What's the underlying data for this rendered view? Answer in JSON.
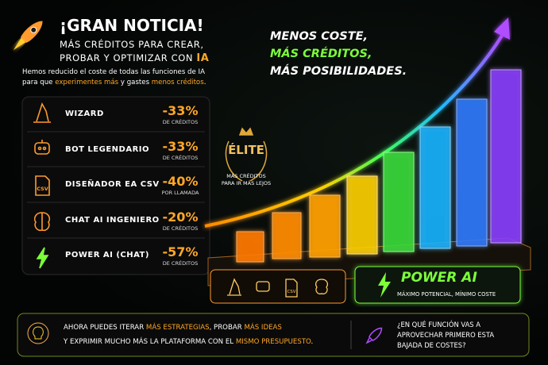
{
  "header": {
    "title": "¡GRAN NOTICIA!",
    "subtitle_line1": "MÁS CRÉDITOS PARA CREAR,",
    "subtitle_line2": "PROBAR Y OPTIMIZAR CON",
    "subtitle_highlight": "IA"
  },
  "intro": {
    "line1": "Hemos reducido el coste de todas las funciones de IA",
    "line2_start": "para que",
    "highlight1": "experimentes más",
    "middle": "y gastes",
    "highlight2": "menos créditos",
    "end": "."
  },
  "features": [
    {
      "name": "WIZARD",
      "discount": "-33%",
      "note": "DE CRÉDITOS"
    },
    {
      "name": "BOT LEGENDARIO",
      "discount": "-33%",
      "note": "DE CRÉDITOS"
    },
    {
      "name": "DISEÑADOR EA CSV",
      "discount": "-40%",
      "note": "POR LLAMADA",
      "icon_label": "CSV"
    },
    {
      "name": "CHAT AI INGENIERO",
      "discount": "-20%",
      "note": "DE CRÉDITOS"
    },
    {
      "name": "POWER AI (CHAT)",
      "discount": "-57%",
      "note": "DE CRÉDITOS"
    }
  ],
  "tagline": {
    "line1": "MENOS COSTE,",
    "line2": "MÁS CRÉDITOS,",
    "line3": "MÁS POSIBILIDADES."
  },
  "badge": {
    "title": "ÉLITE",
    "line1": "MÁS CRÉDITOS",
    "line2": "PARA IR MÁS LEJOS"
  },
  "power_ai": {
    "title": "POWER AI",
    "subtitle": "MÁXIMO POTENCIAL, MÍNIMO COSTE"
  },
  "footer": {
    "line1_start": "AHORA PUEDES ITERAR",
    "highlight1": "MÁS ESTRATEGIAS",
    "line1_mid": ", PROBAR",
    "highlight2": "MÁS IDEAS",
    "line2_start": "Y EXPRIMIR MUCHO MÁS LA PLATAFORMA CON EL",
    "highlight3": "MISMO PRESUPUESTO",
    "line2_end": ".",
    "question_line1": "¿EN QUÉ FUNCIÓN VAS A",
    "question_line2": "APROVECHAR PRIMERO ESTA",
    "question_line3": "BAJADA DE COSTES?"
  }
}
